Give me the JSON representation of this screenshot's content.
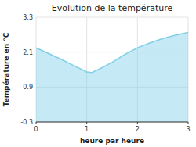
{
  "chart_data": {
    "type": "area",
    "title": "Evolution de la température",
    "x_label": "heure par heure",
    "y_label": "Température en °C",
    "x": [
      0,
      0.25,
      0.5,
      0.75,
      1.0,
      1.1,
      1.25,
      1.5,
      1.75,
      2.0,
      2.25,
      2.5,
      2.75,
      3.0
    ],
    "values": [
      2.25,
      2.05,
      1.85,
      1.63,
      1.42,
      1.4,
      1.52,
      1.75,
      2.02,
      2.25,
      2.42,
      2.57,
      2.68,
      2.78
    ],
    "color": "#7ecfe8",
    "xlim": [
      0,
      3
    ],
    "ylim": [
      -0.3,
      3.3
    ],
    "xticks": [
      0,
      1,
      2,
      3
    ],
    "yticks": [
      -0.3,
      0.9,
      2.1,
      3.3
    ],
    "grid": true
  }
}
